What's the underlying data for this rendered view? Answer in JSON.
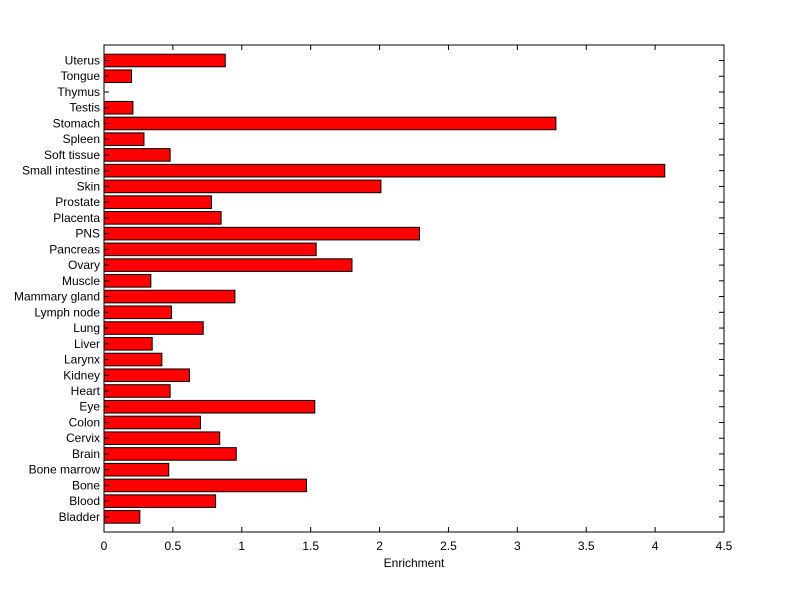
{
  "chart_data": {
    "type": "bar",
    "orientation": "horizontal",
    "title": "",
    "xlabel": "Enrichment",
    "ylabel": "",
    "xlim": [
      0,
      4.5
    ],
    "xticks": [
      0,
      0.5,
      1,
      1.5,
      2,
      2.5,
      3,
      3.5,
      4,
      4.5
    ],
    "grid": false,
    "bar_color": "#ff0000",
    "edge_color": "#000000",
    "categories": [
      "Uterus",
      "Tongue",
      "Thymus",
      "Testis",
      "Stomach",
      "Spleen",
      "Soft tissue",
      "Small intestine",
      "Skin",
      "Prostate",
      "Placenta",
      "PNS",
      "Pancreas",
      "Ovary",
      "Muscle",
      "Mammary gland",
      "Lymph node",
      "Lung",
      "Liver",
      "Larynx",
      "Kidney",
      "Heart",
      "Eye",
      "Colon",
      "Cervix",
      "Brain",
      "Bone marrow",
      "Bone",
      "Blood",
      "Bladder"
    ],
    "values": [
      0.88,
      0.2,
      0.0,
      0.21,
      3.28,
      0.29,
      0.48,
      4.07,
      2.01,
      0.78,
      0.85,
      2.29,
      1.54,
      1.8,
      0.34,
      0.95,
      0.49,
      0.72,
      0.35,
      0.42,
      0.62,
      0.48,
      1.53,
      0.7,
      0.84,
      0.96,
      0.47,
      1.47,
      0.81,
      0.26
    ]
  }
}
